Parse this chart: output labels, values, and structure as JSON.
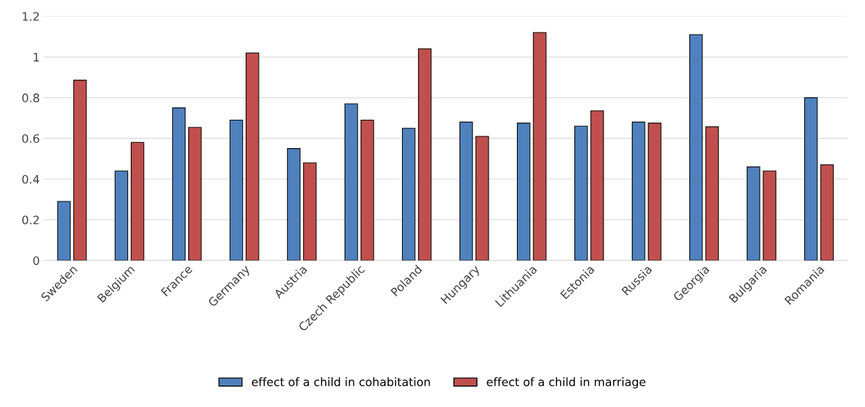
{
  "chart_data": {
    "type": "bar",
    "categories": [
      "Sweden",
      "Belgium",
      "France",
      "Germany",
      "Austria",
      "Czech Republic",
      "Poland",
      "Hungary",
      "Lithuania",
      "Estonia",
      "Russia",
      "Georgia",
      "Bulgaria",
      "Romania"
    ],
    "series": [
      {
        "name": "effect of a child in cohabitation",
        "color": "#4f81bd",
        "values": [
          0.29,
          0.44,
          0.75,
          0.69,
          0.55,
          0.77,
          0.65,
          0.68,
          0.675,
          0.66,
          0.68,
          1.11,
          0.46,
          0.8
        ]
      },
      {
        "name": "effect of a child in marriage",
        "color": "#c0504d",
        "values": [
          0.886,
          0.58,
          0.654,
          1.02,
          0.48,
          0.69,
          1.04,
          0.61,
          1.12,
          0.736,
          0.675,
          0.657,
          0.44,
          0.47
        ]
      }
    ],
    "ylim": [
      0,
      1.2
    ],
    "yticks": [
      0,
      {
        "value": 0.2,
        "label": "0.2"
      },
      {
        "value": 0.4,
        "label": "0.4"
      },
      {
        "value": 0.6,
        "label": "0.6"
      },
      {
        "value": 0.8,
        "label": "0.8"
      },
      1,
      {
        "value": 1.2,
        "label": "1.2"
      }
    ],
    "grid": "y",
    "legend": "bottom"
  }
}
